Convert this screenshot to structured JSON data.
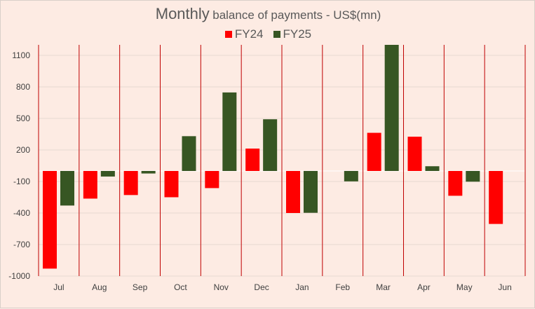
{
  "title_main": "Monthly",
  "title_rest": "balance of payments - US$(mn)",
  "colors": {
    "FY24": "#ff0000",
    "FY25": "#375623",
    "divider": "#c00000",
    "grid": "#e6d8d1"
  },
  "chart_data": {
    "type": "bar",
    "title": "Monthly balance of payments - US$(mn)",
    "categories": [
      "Jul",
      "Aug",
      "Sep",
      "Oct",
      "Nov",
      "Dec",
      "Jan",
      "Feb",
      "Mar",
      "Apr",
      "May",
      "Jun"
    ],
    "series": [
      {
        "name": "FY24",
        "values": [
          -929,
          -263,
          -229,
          -250,
          -163,
          213,
          -400,
          null,
          363,
          326,
          -236,
          -504
        ]
      },
      {
        "name": "FY25",
        "values": [
          -329,
          -53,
          -24,
          331,
          747,
          492,
          -398,
          -99,
          1200,
          45,
          -102,
          null
        ]
      }
    ],
    "ylim": [
      -1000,
      1200
    ],
    "yticks": [
      1100,
      800,
      500,
      200,
      -100,
      -400,
      -700,
      -1000
    ],
    "grid": true,
    "legend_position": "top-center"
  }
}
